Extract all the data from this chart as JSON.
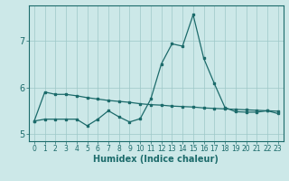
{
  "xlabel": "Humidex (Indice chaleur)",
  "bg_color": "#cce8e8",
  "grid_color": "#9dc8c8",
  "line_color": "#1c6b6b",
  "x_values": [
    0,
    1,
    2,
    3,
    4,
    5,
    6,
    7,
    8,
    9,
    10,
    11,
    12,
    13,
    14,
    15,
    16,
    17,
    18,
    19,
    20,
    21,
    22,
    23
  ],
  "series1_flat": [
    5.28,
    5.9,
    5.85,
    5.85,
    5.82,
    5.78,
    5.75,
    5.72,
    5.7,
    5.68,
    5.65,
    5.63,
    5.62,
    5.6,
    5.59,
    5.58,
    5.56,
    5.55,
    5.54,
    5.53,
    5.52,
    5.51,
    5.5,
    5.49
  ],
  "series2_volatile": [
    5.28,
    5.32,
    5.32,
    5.32,
    5.32,
    5.18,
    5.32,
    5.5,
    5.37,
    5.26,
    5.33,
    5.75,
    6.5,
    6.93,
    6.88,
    7.55,
    6.62,
    6.08,
    5.57,
    5.48,
    5.47,
    5.47,
    5.5,
    5.44
  ],
  "ylim": [
    4.85,
    7.75
  ],
  "xlim": [
    -0.5,
    23.5
  ],
  "yticks": [
    5,
    6,
    7
  ],
  "xticks": [
    0,
    1,
    2,
    3,
    4,
    5,
    6,
    7,
    8,
    9,
    10,
    11,
    12,
    13,
    14,
    15,
    16,
    17,
    18,
    19,
    20,
    21,
    22,
    23
  ],
  "tick_fontsize": 5.5,
  "label_fontsize": 7.0
}
